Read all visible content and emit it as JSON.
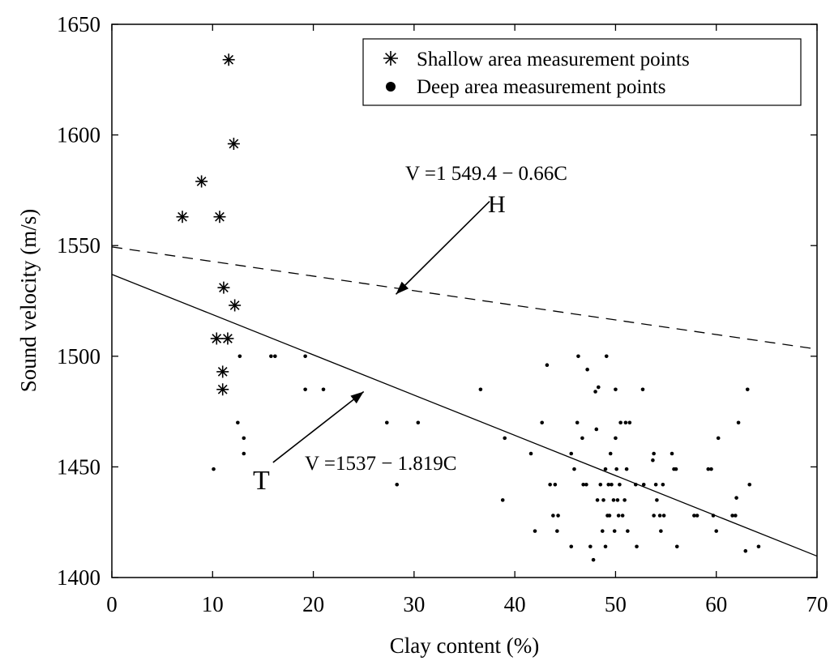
{
  "chart_data": {
    "type": "scatter",
    "title": "",
    "xlabel": "Clay content (%)",
    "ylabel": "Sound velocity (m/s)",
    "xlim": [
      0,
      70
    ],
    "ylim": [
      1400,
      1650
    ],
    "x_ticks": [
      0,
      10,
      20,
      30,
      40,
      50,
      60,
      70
    ],
    "y_ticks": [
      1400,
      1450,
      1500,
      1550,
      1600,
      1650
    ],
    "grid": false,
    "legend_position": "top-right",
    "series": [
      {
        "name": "Shallow area measurement points",
        "marker": "asterisk",
        "points": [
          [
            11.6,
            1634
          ],
          [
            12.1,
            1596
          ],
          [
            8.9,
            1579
          ],
          [
            7.0,
            1563
          ],
          [
            10.7,
            1563
          ],
          [
            11.1,
            1531
          ],
          [
            12.2,
            1523
          ],
          [
            10.4,
            1508
          ],
          [
            11.5,
            1508
          ],
          [
            11.0,
            1493
          ],
          [
            11.0,
            1485
          ]
        ]
      },
      {
        "name": "Deep area measurement points",
        "marker": "dot",
        "points": [
          [
            12.7,
            1500
          ],
          [
            15.8,
            1500
          ],
          [
            16.2,
            1500
          ],
          [
            19.2,
            1500
          ],
          [
            19.2,
            1485
          ],
          [
            21.0,
            1485
          ],
          [
            12.5,
            1470
          ],
          [
            13.1,
            1463
          ],
          [
            13.1,
            1456
          ],
          [
            10.1,
            1449
          ],
          [
            27.3,
            1470
          ],
          [
            30.4,
            1470
          ],
          [
            28.3,
            1442
          ],
          [
            36.6,
            1485
          ],
          [
            39.0,
            1463
          ],
          [
            38.8,
            1435
          ],
          [
            41.6,
            1456
          ],
          [
            42.0,
            1421
          ],
          [
            42.7,
            1470
          ],
          [
            43.2,
            1496
          ],
          [
            43.5,
            1442
          ],
          [
            44.0,
            1442
          ],
          [
            43.8,
            1428
          ],
          [
            44.3,
            1428
          ],
          [
            44.2,
            1421
          ],
          [
            45.6,
            1456
          ],
          [
            45.9,
            1449
          ],
          [
            45.6,
            1414
          ],
          [
            46.3,
            1500
          ],
          [
            46.2,
            1470
          ],
          [
            46.7,
            1463
          ],
          [
            46.8,
            1442
          ],
          [
            47.1,
            1442
          ],
          [
            47.2,
            1494
          ],
          [
            47.5,
            1414
          ],
          [
            47.8,
            1408
          ],
          [
            48.0,
            1484
          ],
          [
            48.3,
            1486
          ],
          [
            48.1,
            1467
          ],
          [
            48.2,
            1435
          ],
          [
            48.5,
            1442
          ],
          [
            48.8,
            1435
          ],
          [
            48.7,
            1421
          ],
          [
            49.0,
            1449
          ],
          [
            49.1,
            1500
          ],
          [
            49.2,
            1428
          ],
          [
            49.3,
            1442
          ],
          [
            49.0,
            1414
          ],
          [
            49.5,
            1456
          ],
          [
            49.6,
            1442
          ],
          [
            49.4,
            1428
          ],
          [
            49.8,
            1435
          ],
          [
            49.9,
            1421
          ],
          [
            50.0,
            1485
          ],
          [
            50.0,
            1463
          ],
          [
            50.1,
            1449
          ],
          [
            50.2,
            1435
          ],
          [
            50.4,
            1442
          ],
          [
            50.3,
            1428
          ],
          [
            50.5,
            1470
          ],
          [
            50.7,
            1428
          ],
          [
            50.9,
            1435
          ],
          [
            51.0,
            1470
          ],
          [
            51.2,
            1421
          ],
          [
            51.4,
            1470
          ],
          [
            51.1,
            1449
          ],
          [
            52.0,
            1442
          ],
          [
            52.1,
            1414
          ],
          [
            52.7,
            1485
          ],
          [
            52.8,
            1442
          ],
          [
            53.8,
            1456
          ],
          [
            53.7,
            1453
          ],
          [
            54.0,
            1442
          ],
          [
            53.8,
            1428
          ],
          [
            54.1,
            1435
          ],
          [
            54.4,
            1428
          ],
          [
            54.5,
            1421
          ],
          [
            54.7,
            1442
          ],
          [
            54.8,
            1428
          ],
          [
            55.6,
            1456
          ],
          [
            55.8,
            1449
          ],
          [
            56.0,
            1449
          ],
          [
            56.1,
            1414
          ],
          [
            57.8,
            1428
          ],
          [
            58.1,
            1428
          ],
          [
            59.2,
            1449
          ],
          [
            59.5,
            1449
          ],
          [
            59.7,
            1428
          ],
          [
            60.0,
            1421
          ],
          [
            60.2,
            1463
          ],
          [
            61.6,
            1428
          ],
          [
            61.9,
            1428
          ],
          [
            62.0,
            1436
          ],
          [
            62.2,
            1470
          ],
          [
            62.9,
            1412
          ],
          [
            63.1,
            1485
          ],
          [
            63.3,
            1442
          ],
          [
            64.2,
            1414
          ]
        ]
      }
    ],
    "regression_lines": [
      {
        "name": "H",
        "style": "dashed",
        "intercept": 1549.4,
        "slope": -0.66,
        "equation": "V =1 549.4 − 0.66C"
      },
      {
        "name": "T",
        "style": "solid",
        "intercept": 1537,
        "slope": -1.819,
        "equation": "V =1537 − 1.819C"
      }
    ],
    "annotations": [
      {
        "label": "H",
        "arrow_from": [
          37.5,
          1570
        ],
        "arrow_to": [
          28.2,
          1528
        ]
      },
      {
        "label": "T",
        "arrow_from": [
          16.0,
          1452
        ],
        "arrow_to": [
          25.0,
          1484
        ]
      }
    ]
  }
}
